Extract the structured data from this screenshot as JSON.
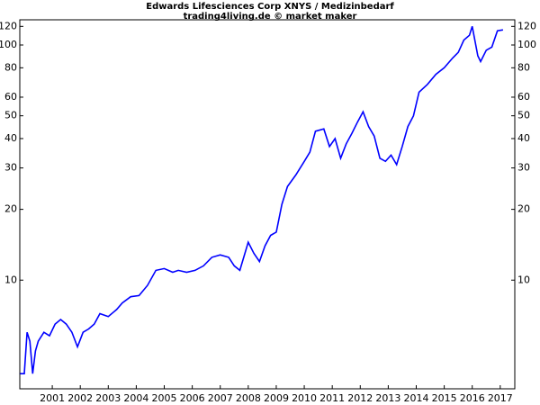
{
  "chart_data": {
    "type": "line",
    "title": "Edwards Lifesciences Corp XNYS / Medizinbedarf",
    "subtitle": "trading4living.de © market maker",
    "log_scale": true,
    "grid": false,
    "xlim": [
      2000.34,
      2018.02
    ],
    "ylim": [
      3.45,
      128
    ],
    "yticks": [
      10,
      20,
      30,
      40,
      50,
      60,
      80,
      100,
      120
    ],
    "xticks": [
      {
        "value": 2001.5,
        "label": "2001"
      },
      {
        "value": 2002.5,
        "label": "2002"
      },
      {
        "value": 2003.5,
        "label": "2003"
      },
      {
        "value": 2004.5,
        "label": "2004"
      },
      {
        "value": 2005.5,
        "label": "2005"
      },
      {
        "value": 2006.5,
        "label": "2006"
      },
      {
        "value": 2007.5,
        "label": "2007"
      },
      {
        "value": 2008.5,
        "label": "2008"
      },
      {
        "value": 2009.5,
        "label": "2009"
      },
      {
        "value": 2010.5,
        "label": "2010"
      },
      {
        "value": 2011.5,
        "label": "2011"
      },
      {
        "value": 2012.5,
        "label": "2012"
      },
      {
        "value": 2013.5,
        "label": "2013"
      },
      {
        "value": 2014.5,
        "label": "2014"
      },
      {
        "value": 2015.5,
        "label": "2015"
      },
      {
        "value": 2016.5,
        "label": "2016"
      },
      {
        "value": 2017.5,
        "label": "2017"
      }
    ],
    "series": [
      {
        "color": "#0000ff",
        "x": [
          2000.35,
          2000.5,
          2000.6,
          2000.7,
          2000.8,
          2000.9,
          2001.0,
          2001.2,
          2001.4,
          2001.6,
          2001.8,
          2002.0,
          2002.2,
          2002.4,
          2002.6,
          2002.8,
          2003.0,
          2003.2,
          2003.5,
          2003.8,
          2004.0,
          2004.3,
          2004.6,
          2004.9,
          2005.2,
          2005.5,
          2005.8,
          2006.0,
          2006.3,
          2006.6,
          2006.9,
          2007.2,
          2007.5,
          2007.8,
          2008.0,
          2008.2,
          2008.5,
          2008.7,
          2008.9,
          2009.1,
          2009.3,
          2009.5,
          2009.7,
          2009.9,
          2010.2,
          2010.5,
          2010.7,
          2010.9,
          2011.2,
          2011.4,
          2011.6,
          2011.8,
          2012.0,
          2012.2,
          2012.4,
          2012.6,
          2012.8,
          2013.0,
          2013.2,
          2013.4,
          2013.6,
          2013.8,
          2014.0,
          2014.2,
          2014.4,
          2014.6,
          2014.9,
          2015.2,
          2015.5,
          2015.8,
          2016.0,
          2016.2,
          2016.4,
          2016.5,
          2016.7,
          2016.8,
          2017.0,
          2017.2,
          2017.4,
          2017.6
        ],
        "values": [
          4,
          4,
          6,
          5.5,
          4,
          5,
          5.5,
          6,
          5.8,
          6.5,
          6.8,
          6.5,
          6,
          5.2,
          6,
          6.2,
          6.5,
          7.2,
          7,
          7.5,
          8,
          8.5,
          8.6,
          9.5,
          11,
          11.2,
          10.8,
          11,
          10.8,
          11,
          11.5,
          12.5,
          12.8,
          12.5,
          11.5,
          11,
          14.5,
          13,
          12,
          14,
          15.5,
          16,
          21,
          25,
          28,
          32,
          35,
          43,
          44,
          37,
          40,
          33,
          38,
          42,
          47,
          52,
          45,
          41,
          33,
          32,
          34,
          31,
          37,
          45,
          50,
          63,
          68,
          75,
          80,
          88,
          93,
          105,
          110,
          120,
          90,
          85,
          95,
          98,
          115,
          116
        ]
      }
    ]
  }
}
